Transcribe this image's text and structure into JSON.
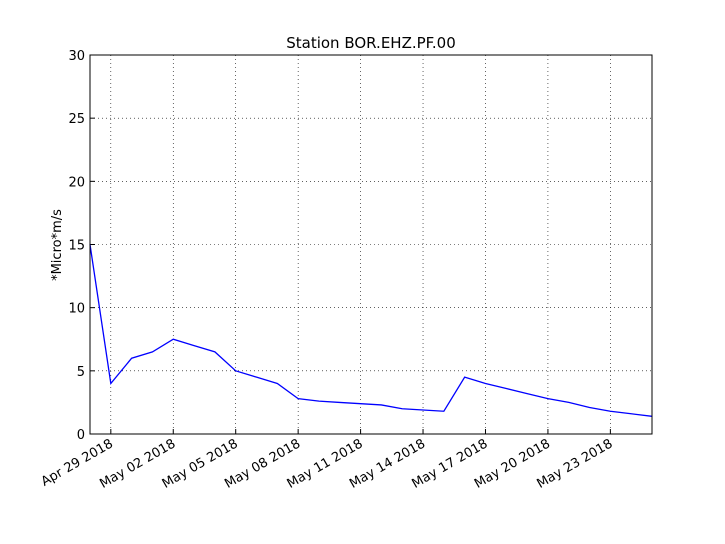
{
  "chart_data": {
    "type": "line",
    "title": "Station BOR.EHZ.PF.00",
    "y_label": "*Micro*m/s",
    "x": [
      "2018-04-28",
      "2018-04-29",
      "2018-04-30",
      "2018-05-01",
      "2018-05-02",
      "2018-05-03",
      "2018-05-04",
      "2018-05-05",
      "2018-05-06",
      "2018-05-07",
      "2018-05-08",
      "2018-05-09",
      "2018-05-10",
      "2018-05-11",
      "2018-05-12",
      "2018-05-13",
      "2018-05-14",
      "2018-05-15",
      "2018-05-16",
      "2018-05-17",
      "2018-05-18",
      "2018-05-19",
      "2018-05-20",
      "2018-05-21",
      "2018-05-22",
      "2018-05-23",
      "2018-05-24",
      "2018-05-25"
    ],
    "series": [
      {
        "name": "BOR.EHZ.PF.00",
        "color": "#0000ff",
        "values": [
          15,
          4,
          6,
          6.5,
          7.5,
          7,
          6.5,
          5,
          4.5,
          4,
          2.8,
          2.6,
          2.5,
          2.4,
          2.3,
          2,
          1.9,
          1.8,
          4.5,
          4,
          3.6,
          3.2,
          2.8,
          2.5,
          2.1,
          1.8,
          1.6,
          1.4
        ]
      }
    ],
    "xlim": [
      "2018-04-28",
      "2018-05-25"
    ],
    "xticks": [
      {
        "value": "2018-04-29",
        "label": "Apr 29 2018"
      },
      {
        "value": "2018-05-02",
        "label": "May 02 2018"
      },
      {
        "value": "2018-05-05",
        "label": "May 05 2018"
      },
      {
        "value": "2018-05-08",
        "label": "May 08 2018"
      },
      {
        "value": "2018-05-11",
        "label": "May 11 2018"
      },
      {
        "value": "2018-05-14",
        "label": "May 14 2018"
      },
      {
        "value": "2018-05-17",
        "label": "May 17 2018"
      },
      {
        "value": "2018-05-20",
        "label": "May 20 2018"
      },
      {
        "value": "2018-05-23",
        "label": "May 23 2018"
      }
    ],
    "ylim": [
      0,
      30
    ],
    "yticks": [
      0,
      5,
      10,
      15,
      20,
      25,
      30
    ],
    "grid": true
  }
}
